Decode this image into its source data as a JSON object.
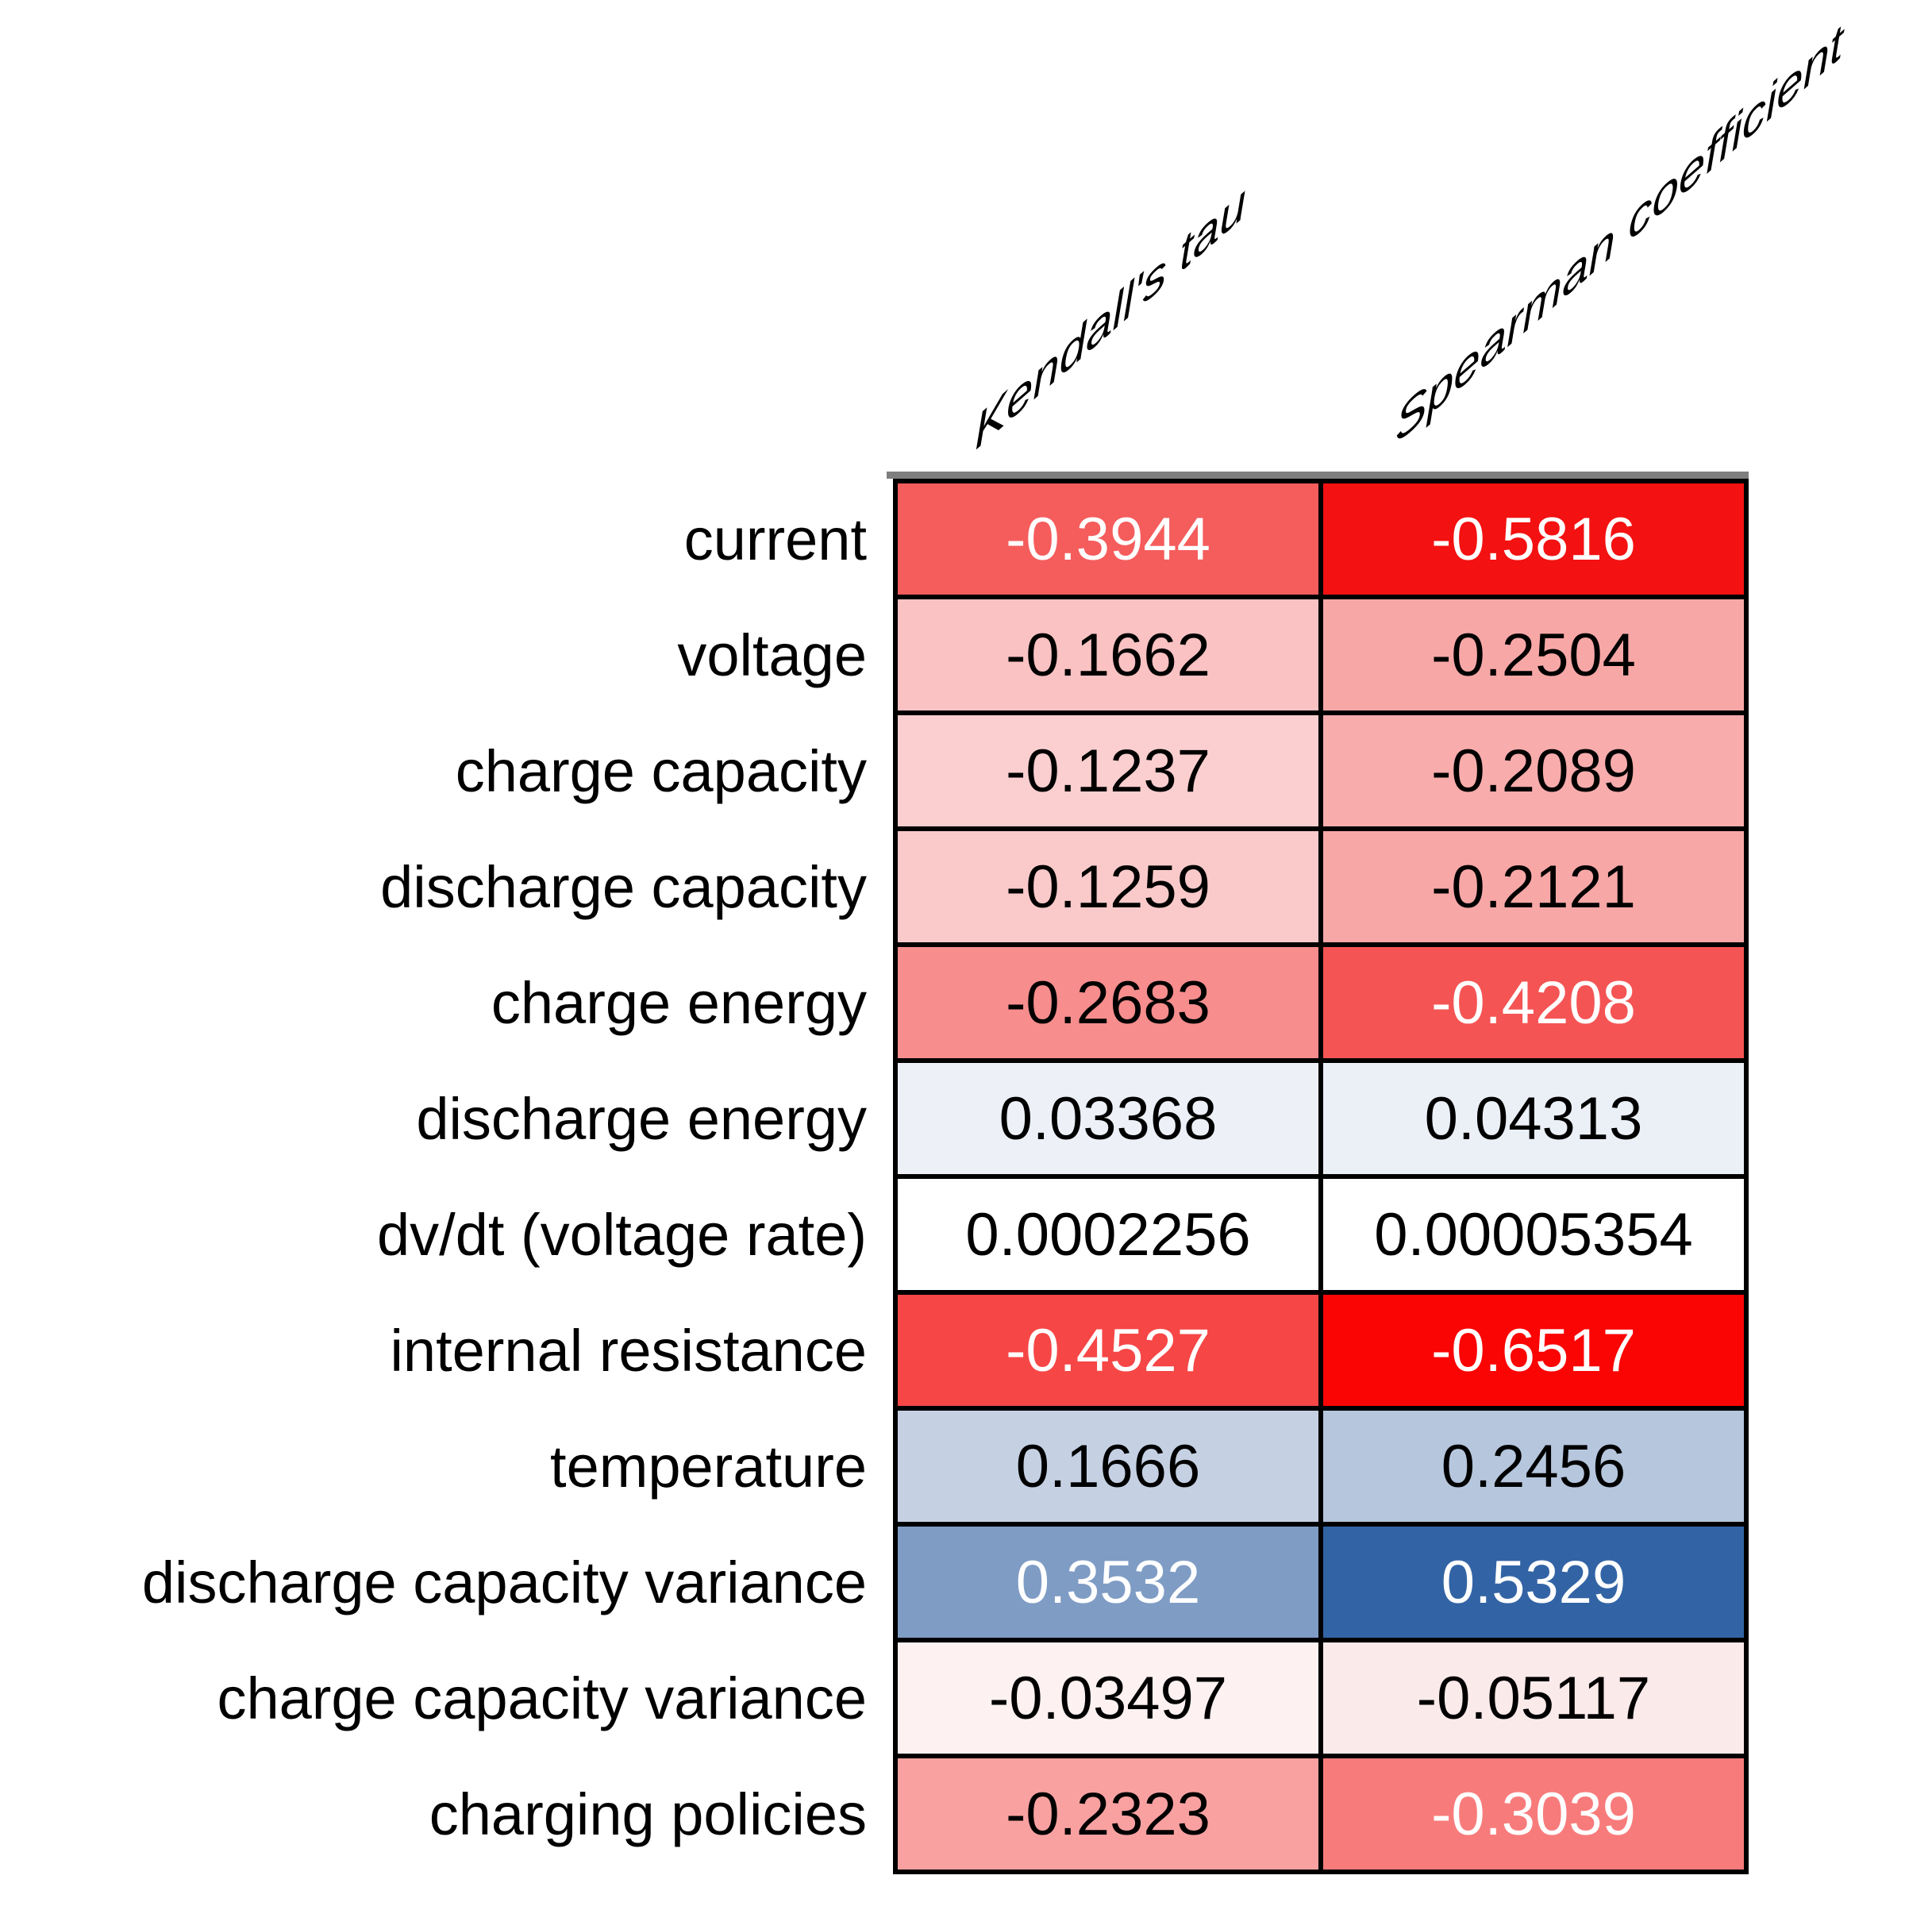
{
  "figure": {
    "kind": "correlation heatmap table",
    "background": "#ffffff",
    "top_bar_color": "#7f7f7f",
    "grid_line_color": "#000000"
  },
  "table": {
    "columns": [
      {
        "label": "Kendall's tau"
      },
      {
        "label": "Spearman coefficient"
      }
    ],
    "rows": [
      {
        "label": "current",
        "kendall": {
          "value": "-0.3944",
          "bg": "#f55c5c",
          "fg": "#ffffff"
        },
        "spearman": {
          "value": "-0.5816",
          "bg": "#f31111",
          "fg": "#ffffff"
        }
      },
      {
        "label": "voltage",
        "kendall": {
          "value": "-0.1662",
          "bg": "#fac2c2",
          "fg": "#000000"
        },
        "spearman": {
          "value": "-0.2504",
          "bg": "#f8a7a7",
          "fg": "#000000"
        }
      },
      {
        "label": "charge capacity",
        "kendall": {
          "value": "-0.1237",
          "bg": "#fbcfcf",
          "fg": "#000000"
        },
        "spearman": {
          "value": "-0.2089",
          "bg": "#f8acac",
          "fg": "#000000"
        }
      },
      {
        "label": "discharge capacity",
        "kendall": {
          "value": "-0.1259",
          "bg": "#facaca",
          "fg": "#000000"
        },
        "spearman": {
          "value": "-0.2121",
          "bg": "#f8a7a7",
          "fg": "#000000"
        }
      },
      {
        "label": "charge energy",
        "kendall": {
          "value": "-0.2683",
          "bg": "#f78d8d",
          "fg": "#000000"
        },
        "spearman": {
          "value": "-0.4208",
          "bg": "#f55454",
          "fg": "#ffffff"
        }
      },
      {
        "label": "discharge energy",
        "kendall": {
          "value": "0.03368",
          "bg": "#edf1f7",
          "fg": "#000000"
        },
        "spearman": {
          "value": "0.04313",
          "bg": "#ebf0f7",
          "fg": "#000000"
        }
      },
      {
        "label": "dv/dt (voltage rate)",
        "kendall": {
          "value": "0.0002256",
          "bg": "#ffffff",
          "fg": "#000000"
        },
        "spearman": {
          "value": "0.00005354",
          "bg": "#ffffff",
          "fg": "#000000"
        }
      },
      {
        "label": "internal resistance",
        "kendall": {
          "value": "-0.4527",
          "bg": "#f64646",
          "fg": "#ffffff"
        },
        "spearman": {
          "value": "-0.6517",
          "bg": "#fb0404",
          "fg": "#ffffff"
        }
      },
      {
        "label": "temperature",
        "kendall": {
          "value": "0.1666",
          "bg": "#c5d1e3",
          "fg": "#000000"
        },
        "spearman": {
          "value": "0.2456",
          "bg": "#b5c6dd",
          "fg": "#000000"
        }
      },
      {
        "label": "discharge capacity variance",
        "kendall": {
          "value": "0.3532",
          "bg": "#7f9cc5",
          "fg": "#ffffff"
        },
        "spearman": {
          "value": "0.5329",
          "bg": "#3264a5",
          "fg": "#ffffff"
        }
      },
      {
        "label": "charge capacity variance",
        "kendall": {
          "value": "-0.03497",
          "bg": "#fdf1f1",
          "fg": "#000000"
        },
        "spearman": {
          "value": "-0.05117",
          "bg": "#fbeaea",
          "fg": "#000000"
        }
      },
      {
        "label": "charging policies",
        "kendall": {
          "value": "-0.2323",
          "bg": "#f9a1a1",
          "fg": "#000000"
        },
        "spearman": {
          "value": "-0.3039",
          "bg": "#f87b7b",
          "fg": "#ffffff"
        }
      }
    ]
  },
  "chart_data": {
    "type": "heatmap",
    "title": "",
    "columns": [
      "Kendall's tau",
      "Spearman coefficient"
    ],
    "rows": [
      "current",
      "voltage",
      "charge capacity",
      "discharge capacity",
      "charge energy",
      "discharge energy",
      "dv/dt (voltage rate)",
      "internal resistance",
      "temperature",
      "discharge capacity variance",
      "charge capacity variance",
      "charging policies"
    ],
    "values": [
      [
        -0.3944,
        -0.5816
      ],
      [
        -0.1662,
        -0.2504
      ],
      [
        -0.1237,
        -0.2089
      ],
      [
        -0.1259,
        -0.2121
      ],
      [
        -0.2683,
        -0.4208
      ],
      [
        0.03368,
        0.04313
      ],
      [
        0.0002256,
        5.354e-05
      ],
      [
        -0.4527,
        -0.6517
      ],
      [
        0.1666,
        0.2456
      ],
      [
        0.3532,
        0.5329
      ],
      [
        -0.03497,
        -0.05117
      ],
      [
        -0.2323,
        -0.3039
      ]
    ],
    "colormap": "diverging red (negative) to white (zero) to blue (positive)",
    "value_range": [
      -0.6517,
      0.5329
    ],
    "legend_position": "none",
    "grid": "black cell borders, gray bar across top of table"
  }
}
